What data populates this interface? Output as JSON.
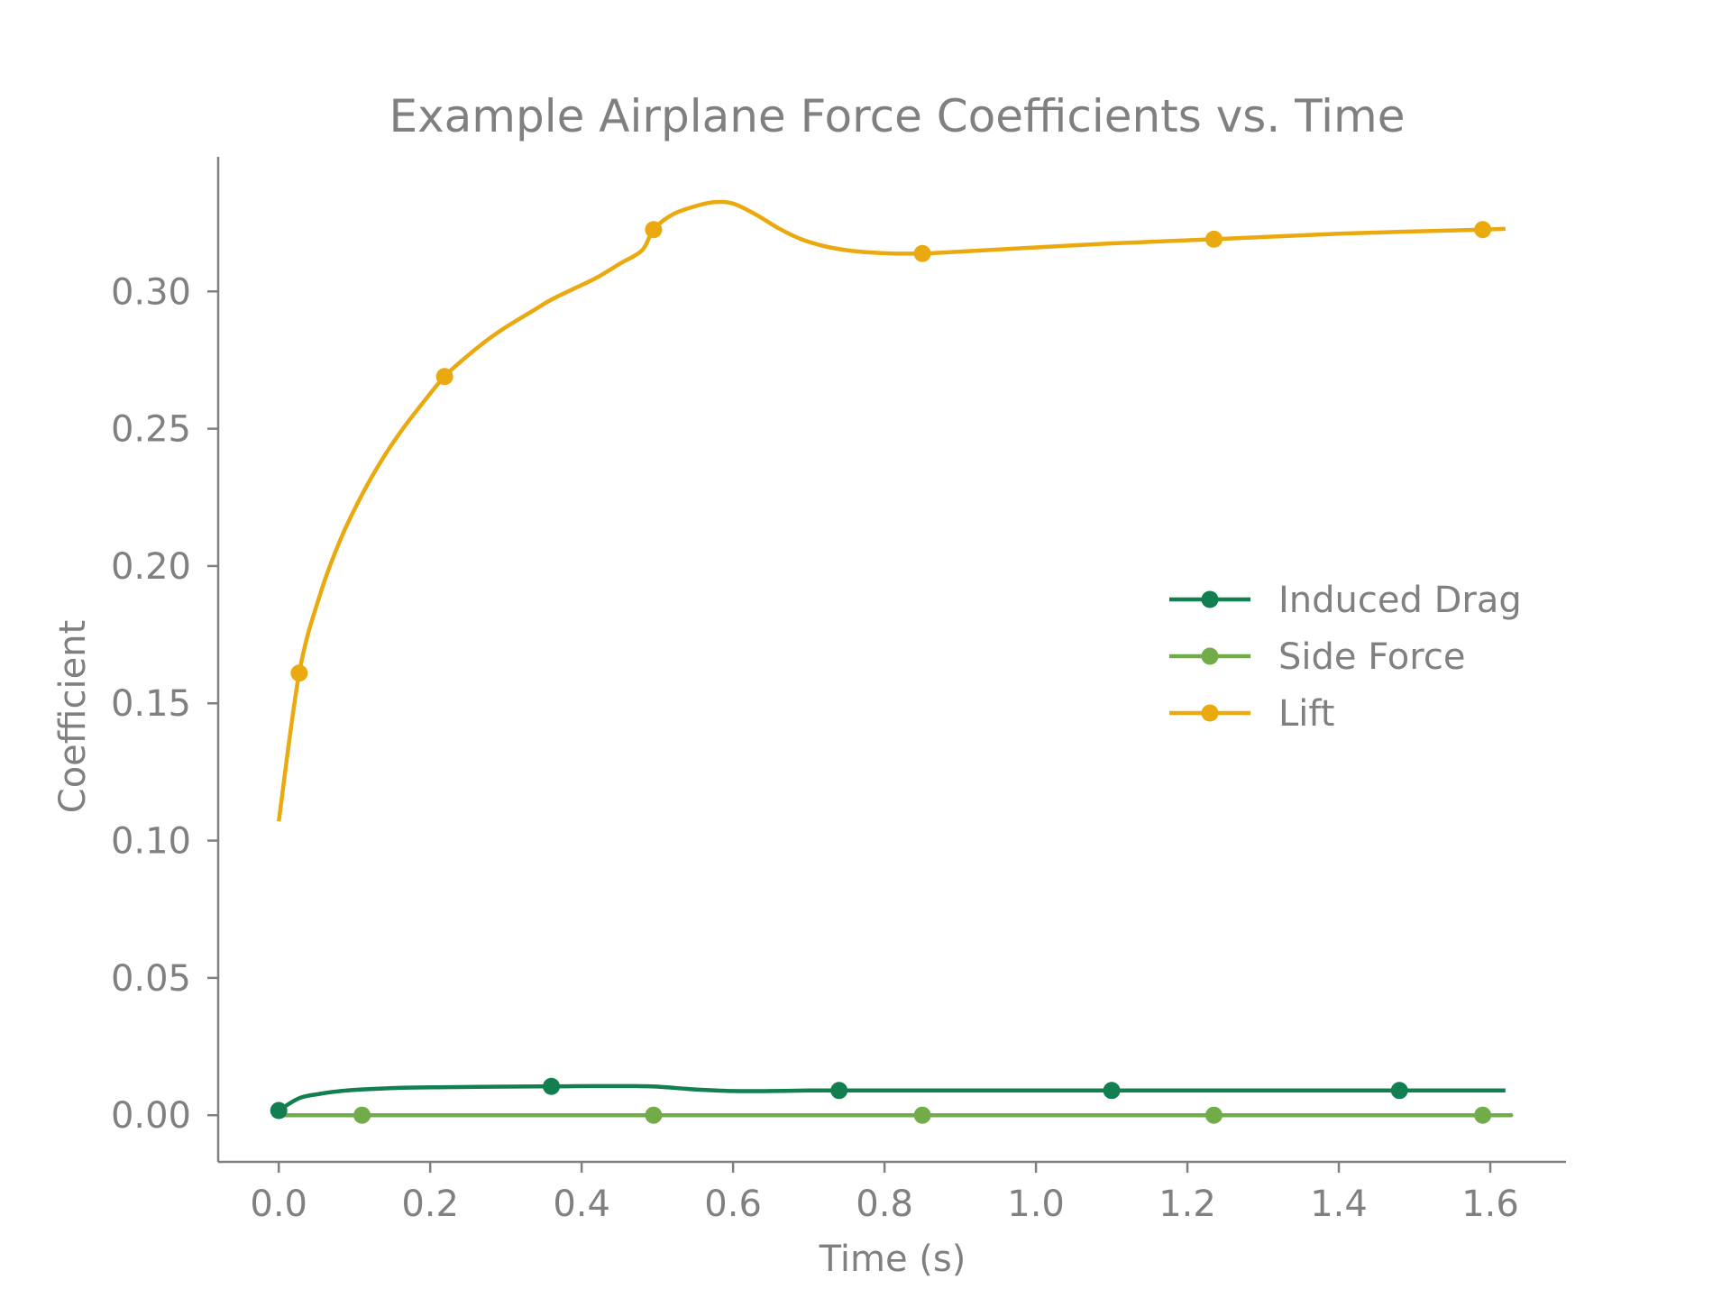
{
  "chart_data": {
    "type": "line",
    "title": "Example Airplane Force Coefficients vs. Time",
    "xlabel": "Time (s)",
    "ylabel": "Coefficient",
    "xlim": [
      -0.08,
      1.7
    ],
    "ylim": [
      -0.017,
      0.349
    ],
    "xticks": [
      0.0,
      0.2,
      0.4,
      0.6,
      0.8,
      1.0,
      1.2,
      1.4,
      1.6
    ],
    "xtick_labels": [
      "0.0",
      "0.2",
      "0.4",
      "0.6",
      "0.8",
      "1.0",
      "1.2",
      "1.4",
      "1.6"
    ],
    "yticks": [
      0.0,
      0.05,
      0.1,
      0.15,
      0.2,
      0.25,
      0.3
    ],
    "ytick_labels": [
      "0.00",
      "0.05",
      "0.10",
      "0.15",
      "0.20",
      "0.25",
      "0.30"
    ],
    "grid": false,
    "legend_position": "center-right",
    "series": [
      {
        "name": "Induced Drag",
        "color": "#117f4f",
        "x": [
          0.0,
          0.027,
          0.055,
          0.082,
          0.11,
          0.164,
          0.22,
          0.3,
          0.36,
          0.42,
          0.47,
          0.5,
          0.55,
          0.6,
          0.65,
          0.7,
          0.74,
          0.8,
          0.9,
          1.0,
          1.1,
          1.2,
          1.3,
          1.4,
          1.48,
          1.55,
          1.62
        ],
        "y": [
          0.0017,
          0.0062,
          0.0078,
          0.0088,
          0.0094,
          0.01,
          0.0102,
          0.0104,
          0.0105,
          0.0106,
          0.0106,
          0.0104,
          0.0094,
          0.0088,
          0.0088,
          0.009,
          0.009,
          0.009,
          0.009,
          0.009,
          0.009,
          0.009,
          0.009,
          0.009,
          0.009,
          0.009,
          0.009
        ],
        "markers_x": [
          0.0,
          0.36,
          0.74,
          1.1,
          1.48
        ],
        "markers_y": [
          0.0017,
          0.0105,
          0.009,
          0.009,
          0.009
        ]
      },
      {
        "name": "Side Force",
        "color": "#72ac48",
        "x": [
          0.0,
          0.11,
          0.5,
          0.85,
          1.23,
          1.59,
          1.62
        ],
        "y": [
          0.0,
          0.0,
          0.0,
          0.0,
          0.0,
          0.0,
          0.0
        ],
        "markers_x": [
          0.11,
          0.495,
          0.85,
          1.235,
          1.59
        ],
        "markers_y": [
          0.0,
          0.0,
          0.0,
          0.0,
          0.0
        ]
      },
      {
        "name": "Lift",
        "color": "#eaaa0f",
        "x": [
          0.0,
          0.027,
          0.055,
          0.082,
          0.11,
          0.137,
          0.164,
          0.192,
          0.219,
          0.247,
          0.274,
          0.3,
          0.33,
          0.36,
          0.39,
          0.42,
          0.45,
          0.48,
          0.495,
          0.52,
          0.55,
          0.575,
          0.6,
          0.63,
          0.66,
          0.69,
          0.72,
          0.75,
          0.78,
          0.81,
          0.85,
          0.9,
          1.0,
          1.1,
          1.235,
          1.4,
          1.59,
          1.62
        ],
        "y": [
          0.107,
          0.161,
          0.19,
          0.21,
          0.226,
          0.239,
          0.25,
          0.26,
          0.269,
          0.276,
          0.282,
          0.287,
          0.292,
          0.297,
          0.301,
          0.305,
          0.31,
          0.315,
          0.3225,
          0.328,
          0.331,
          0.3325,
          0.332,
          0.328,
          0.323,
          0.319,
          0.3165,
          0.315,
          0.3142,
          0.3138,
          0.3138,
          0.3145,
          0.316,
          0.3175,
          0.319,
          0.321,
          0.3225,
          0.3228
        ],
        "markers_x": [
          0.027,
          0.219,
          0.495,
          0.85,
          1.235,
          1.59
        ],
        "markers_y": [
          0.161,
          0.269,
          0.3225,
          0.3138,
          0.319,
          0.3225
        ]
      }
    ],
    "legend_order": [
      0,
      1,
      2
    ]
  }
}
